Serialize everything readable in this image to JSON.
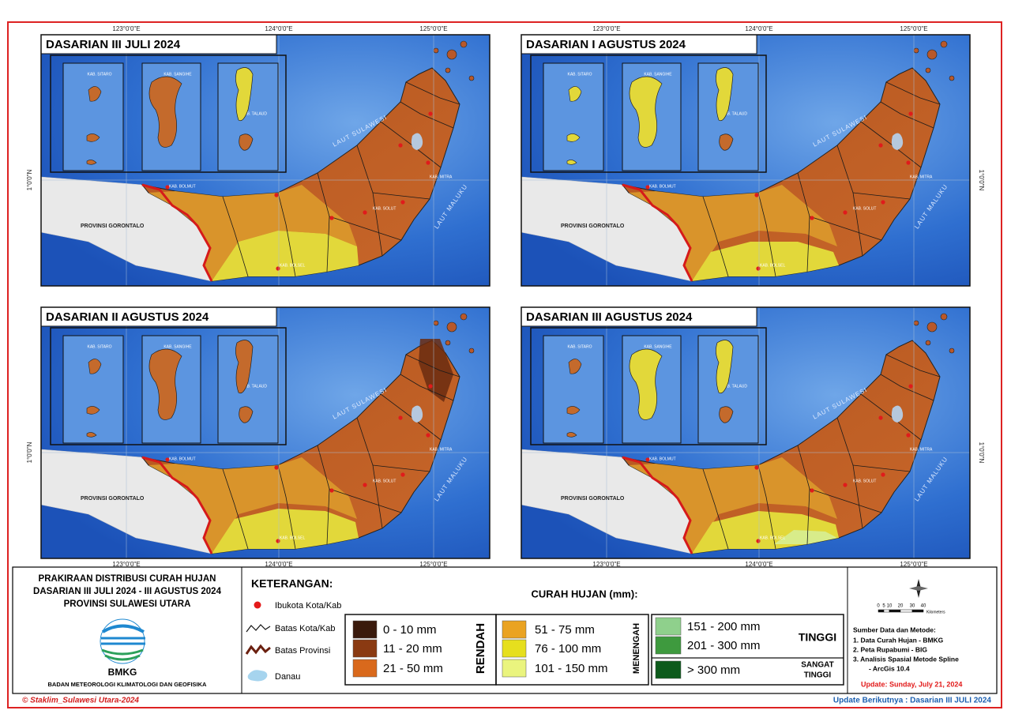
{
  "maps": [
    {
      "title": "DASARIAN III JULI 2024"
    },
    {
      "title": "DASARIAN I AGUSTUS 2024"
    },
    {
      "title": "DASARIAN II AGUSTUS 2024"
    },
    {
      "title": "DASARIAN III AGUSTUS 2024"
    }
  ],
  "coordinates": {
    "longitudes": [
      "123°0'0\"E",
      "124°0'0\"E",
      "125°0'0\"E"
    ],
    "latitude": "1°0'0\"N"
  },
  "map_labels": {
    "sea_north": "LAUT SULAWESI",
    "sea_east": "LAUT MALUKU",
    "province": "PROVINSI GORONTALO",
    "regencies": [
      "KAB. SITARO",
      "KAB. SANGIHE",
      "KAB. TALAUD",
      "KAB. BOLMUT",
      "KAB. BOLSEL",
      "KAB. SOLUT",
      "KAB. MITRA"
    ]
  },
  "legend": {
    "title_lines": [
      "PRAKIRAAN DISTRIBUSI CURAH HUJAN",
      "DASARIAN III JULI 2024 - III AGUSTUS 2024",
      "PROVINSI SULAWESI UTARA"
    ],
    "logo": "BMKG",
    "agency": "BADAN METEOROLOGI KLIMATOLOGI DAN GEOFISIKA",
    "keterangan_title": "KETERANGAN:",
    "symbols": [
      "Ibukota Kota/Kab",
      "Batas Kota/Kab",
      "Batas Provinsi",
      "Danau"
    ],
    "rain_title": "CURAH HUJAN (mm):",
    "groups": [
      {
        "name": "RENDAH",
        "classes": [
          {
            "label": "0 - 10 mm",
            "color": "#3a1a0c"
          },
          {
            "label": "11 - 20 mm",
            "color": "#8a3a12"
          },
          {
            "label": "21 - 50 mm",
            "color": "#d9691c"
          }
        ]
      },
      {
        "name": "MENENGAH",
        "classes": [
          {
            "label": "51 - 75 mm",
            "color": "#eaa322"
          },
          {
            "label": "76 - 100 mm",
            "color": "#e6df1e"
          },
          {
            "label": "101 - 150 mm",
            "color": "#eaf47e"
          }
        ]
      },
      {
        "name": "TINGGI",
        "classes": [
          {
            "label": "151 - 200 mm",
            "color": "#8fd08c"
          },
          {
            "label": "201 - 300 mm",
            "color": "#3e9a3e"
          }
        ]
      },
      {
        "name": [
          "SANGAT",
          "TINGGI"
        ],
        "classes": [
          {
            "label": "> 300 mm",
            "color": "#0d5a1b"
          }
        ]
      }
    ],
    "scale_labels": [
      "0",
      "5",
      "10",
      "20",
      "30",
      "40"
    ],
    "scale_unit": "Kilometers",
    "sources_title": "Sumber Data dan Metode:",
    "sources": [
      "1. Data Curah Hujan - BMKG",
      "2. Peta Rupabumi - BIG",
      "3. Analisis Spasial Metode Spline",
      "- ArcGis 10.4"
    ],
    "update": "Update: Sunday, July 21, 2024"
  },
  "footer": {
    "copyright": "© Staklim_Sulawesi Utara-2024",
    "next_update": "Update Berikutnya : Dasarian III JULI 2024"
  }
}
